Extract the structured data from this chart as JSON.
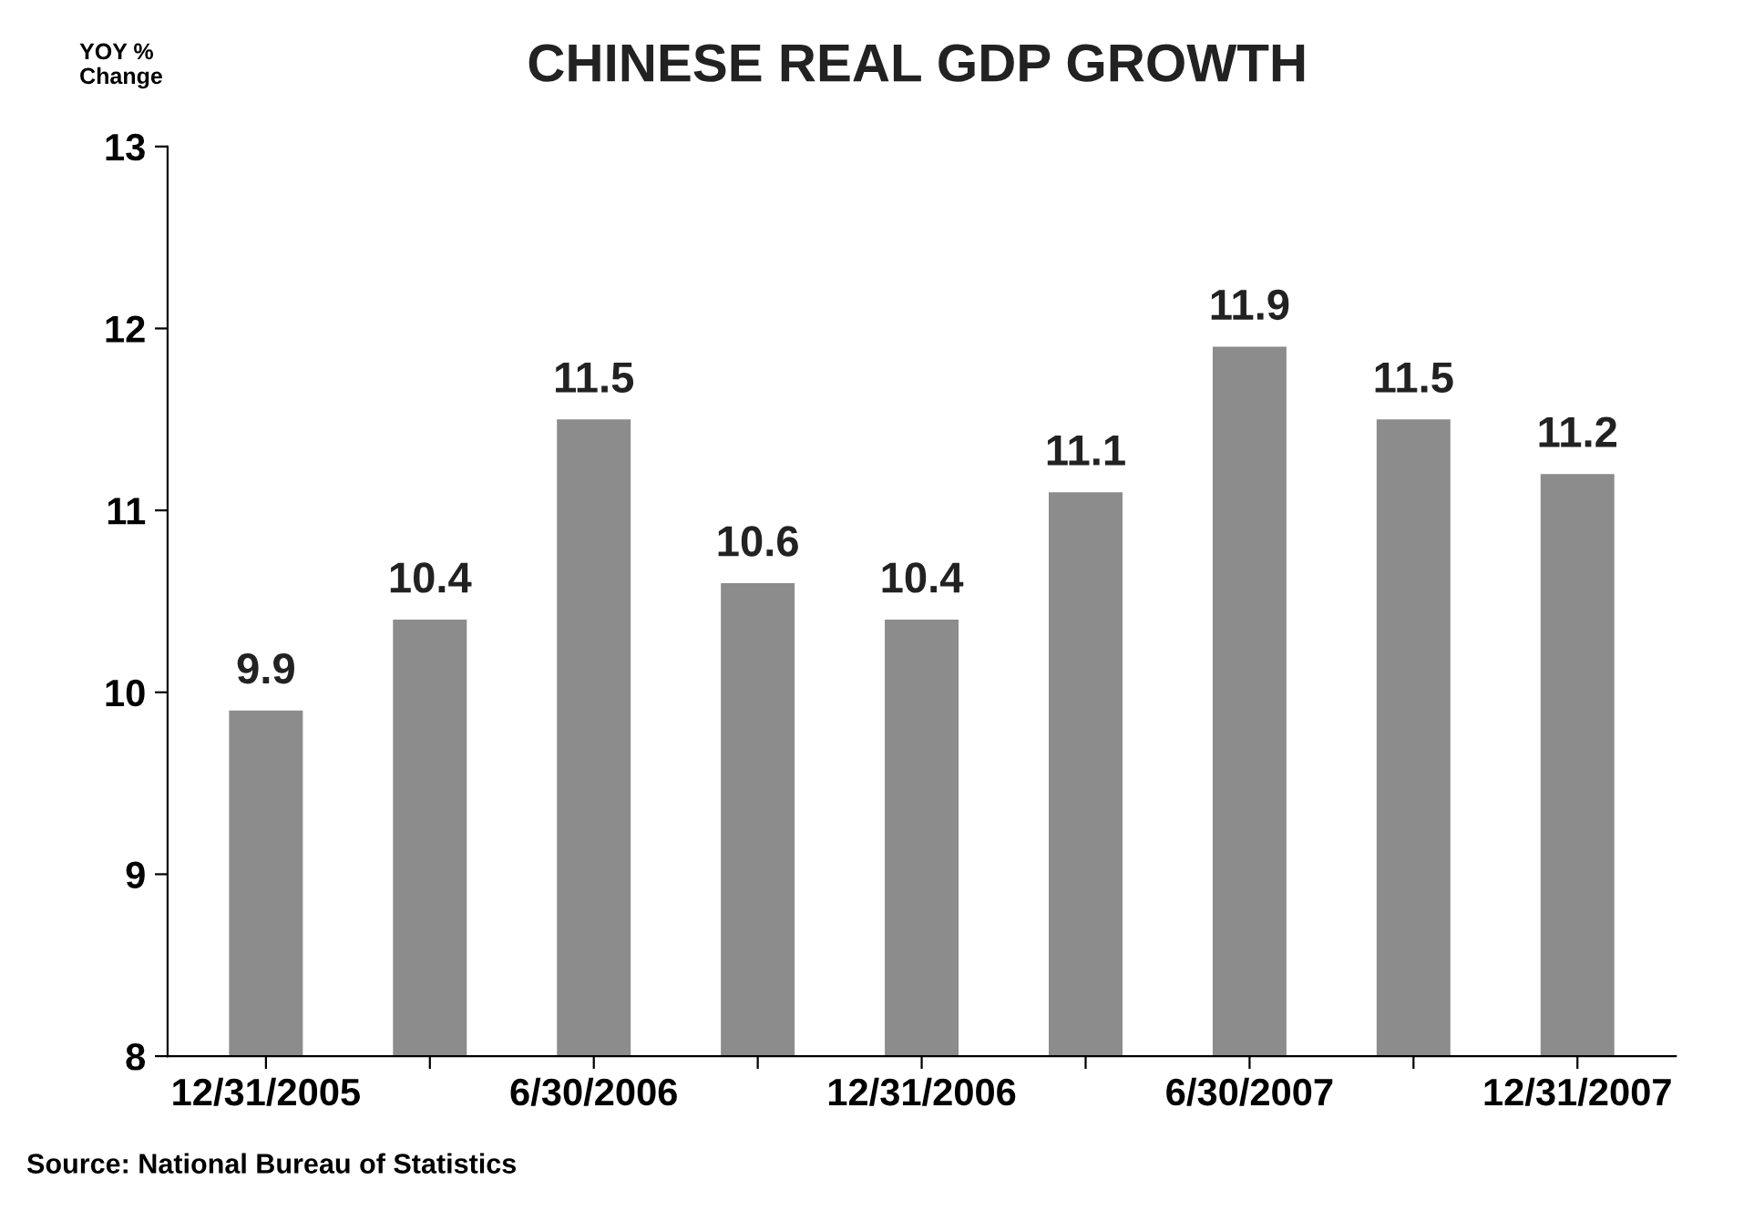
{
  "chart_data": {
    "type": "bar",
    "title": "CHINESE REAL GDP GROWTH",
    "ylabel": "YOY %\nChange",
    "categories": [
      "12/31/2005",
      null,
      "6/30/2006",
      null,
      "12/31/2006",
      null,
      "6/30/2007",
      null,
      "12/31/2007"
    ],
    "values": [
      9.9,
      10.4,
      11.5,
      10.6,
      10.4,
      11.1,
      11.9,
      11.5,
      11.2
    ],
    "color": "#8c8c8c",
    "ylim": [
      8,
      13
    ],
    "yticks": [
      8,
      9,
      10,
      11,
      12,
      13
    ],
    "data_labels": true,
    "grid": false,
    "annotations": [
      "Source: National Bureau of Statistics"
    ]
  }
}
